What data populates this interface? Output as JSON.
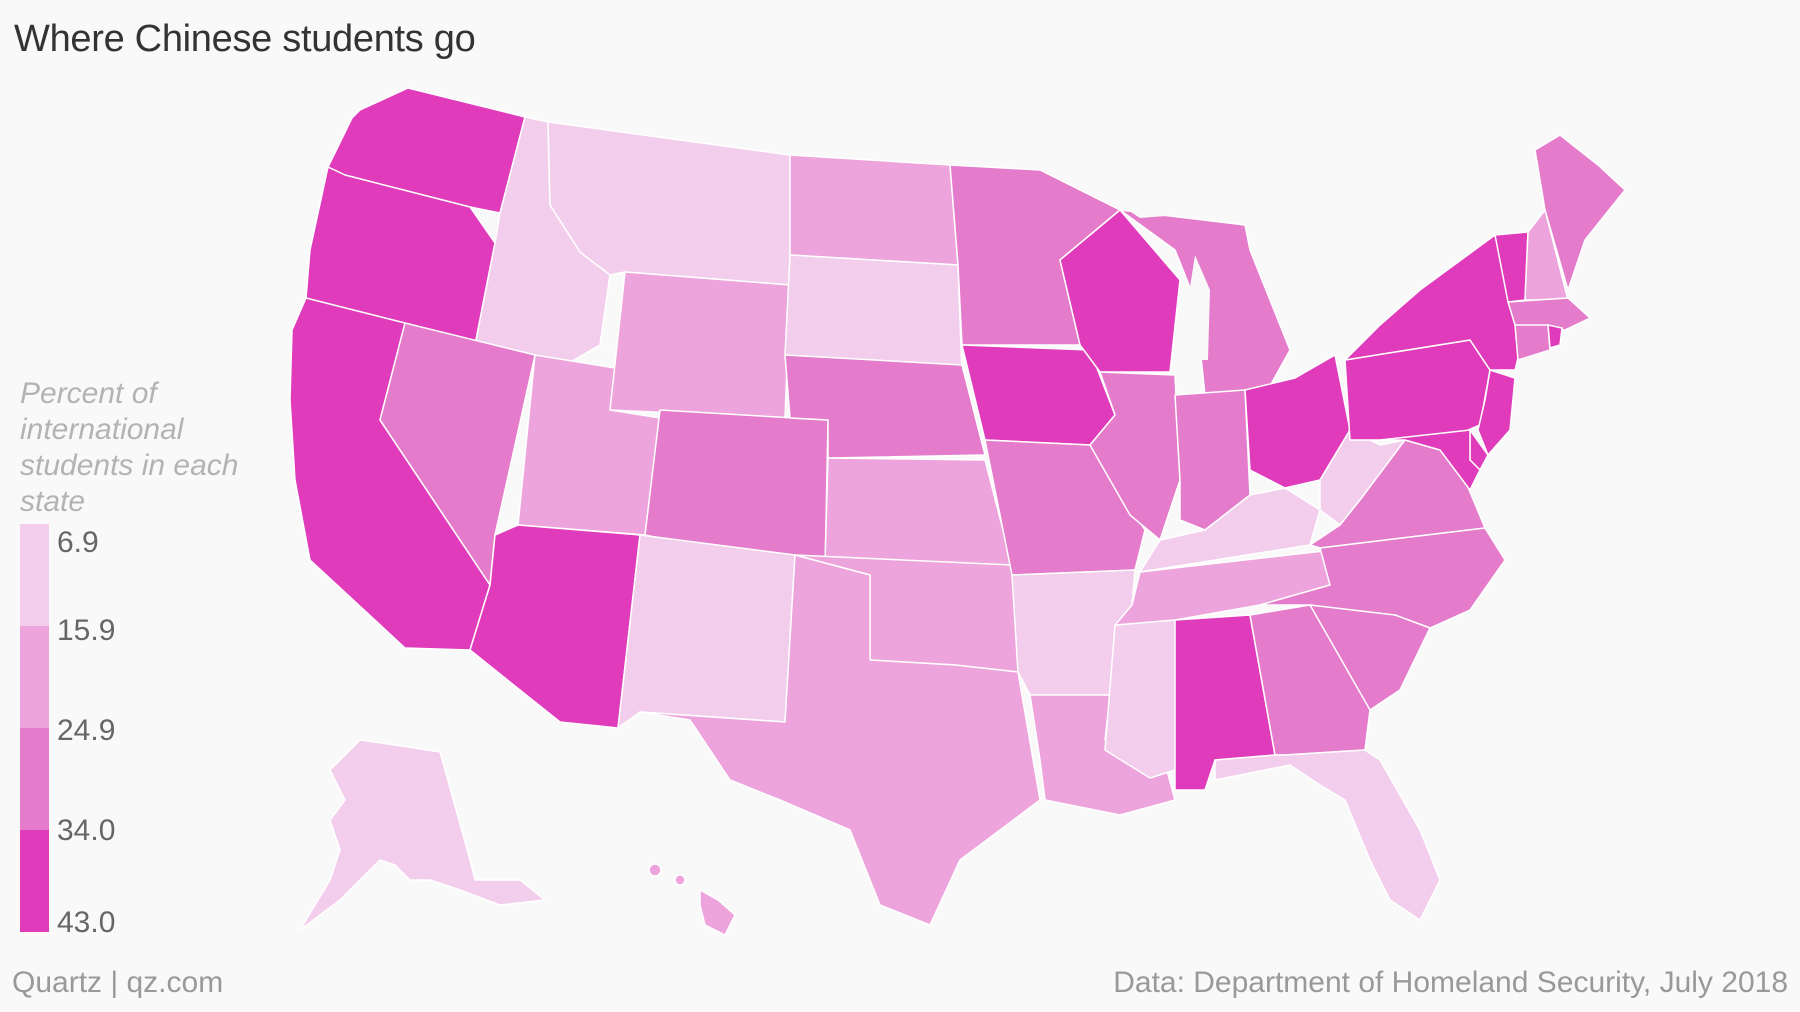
{
  "title": "Where Chinese students go",
  "legend": {
    "title": "Percent of international students in each state",
    "breaks": [
      "6.9",
      "15.9",
      "24.9",
      "34.0",
      "43.0"
    ],
    "colors": [
      "#f3cdec",
      "#eda3dc",
      "#e47bcb",
      "#df3bbb"
    ]
  },
  "footer": {
    "credit": "Quartz | qz.com",
    "source": "Data: Department of Homeland Security, July 2018"
  },
  "chart_data": {
    "type": "choropleth",
    "classes": [
      "6.9–15.9",
      "15.9–24.9",
      "24.9–34.0",
      "34.0–43.0"
    ],
    "states": {
      "WA": 4,
      "OR": 4,
      "CA": 4,
      "AZ": 4,
      "IA": 4,
      "WI": 4,
      "OH": 4,
      "PA": 4,
      "NY": 4,
      "NJ": 4,
      "MD": 4,
      "DE": 4,
      "VT": 4,
      "RI": 4,
      "AL": 4,
      "NV": 3,
      "CO": 3,
      "NE": 3,
      "MN": 3,
      "MO": 3,
      "IL": 3,
      "IN": 3,
      "MI": 3,
      "VA": 3,
      "NC": 3,
      "SC": 3,
      "GA": 3,
      "MA": 3,
      "CT": 3,
      "ME": 3,
      "UT": 2,
      "WY": 2,
      "ND": 2,
      "KS": 2,
      "OK": 2,
      "TX": 2,
      "LA": 2,
      "TN": 2,
      "NH": 2,
      "HI": 2,
      "ID": 1,
      "MT": 1,
      "SD": 1,
      "NM": 1,
      "AR": 1,
      "MS": 1,
      "KY": 1,
      "WV": 1,
      "FL": 1,
      "AK": 1
    }
  }
}
